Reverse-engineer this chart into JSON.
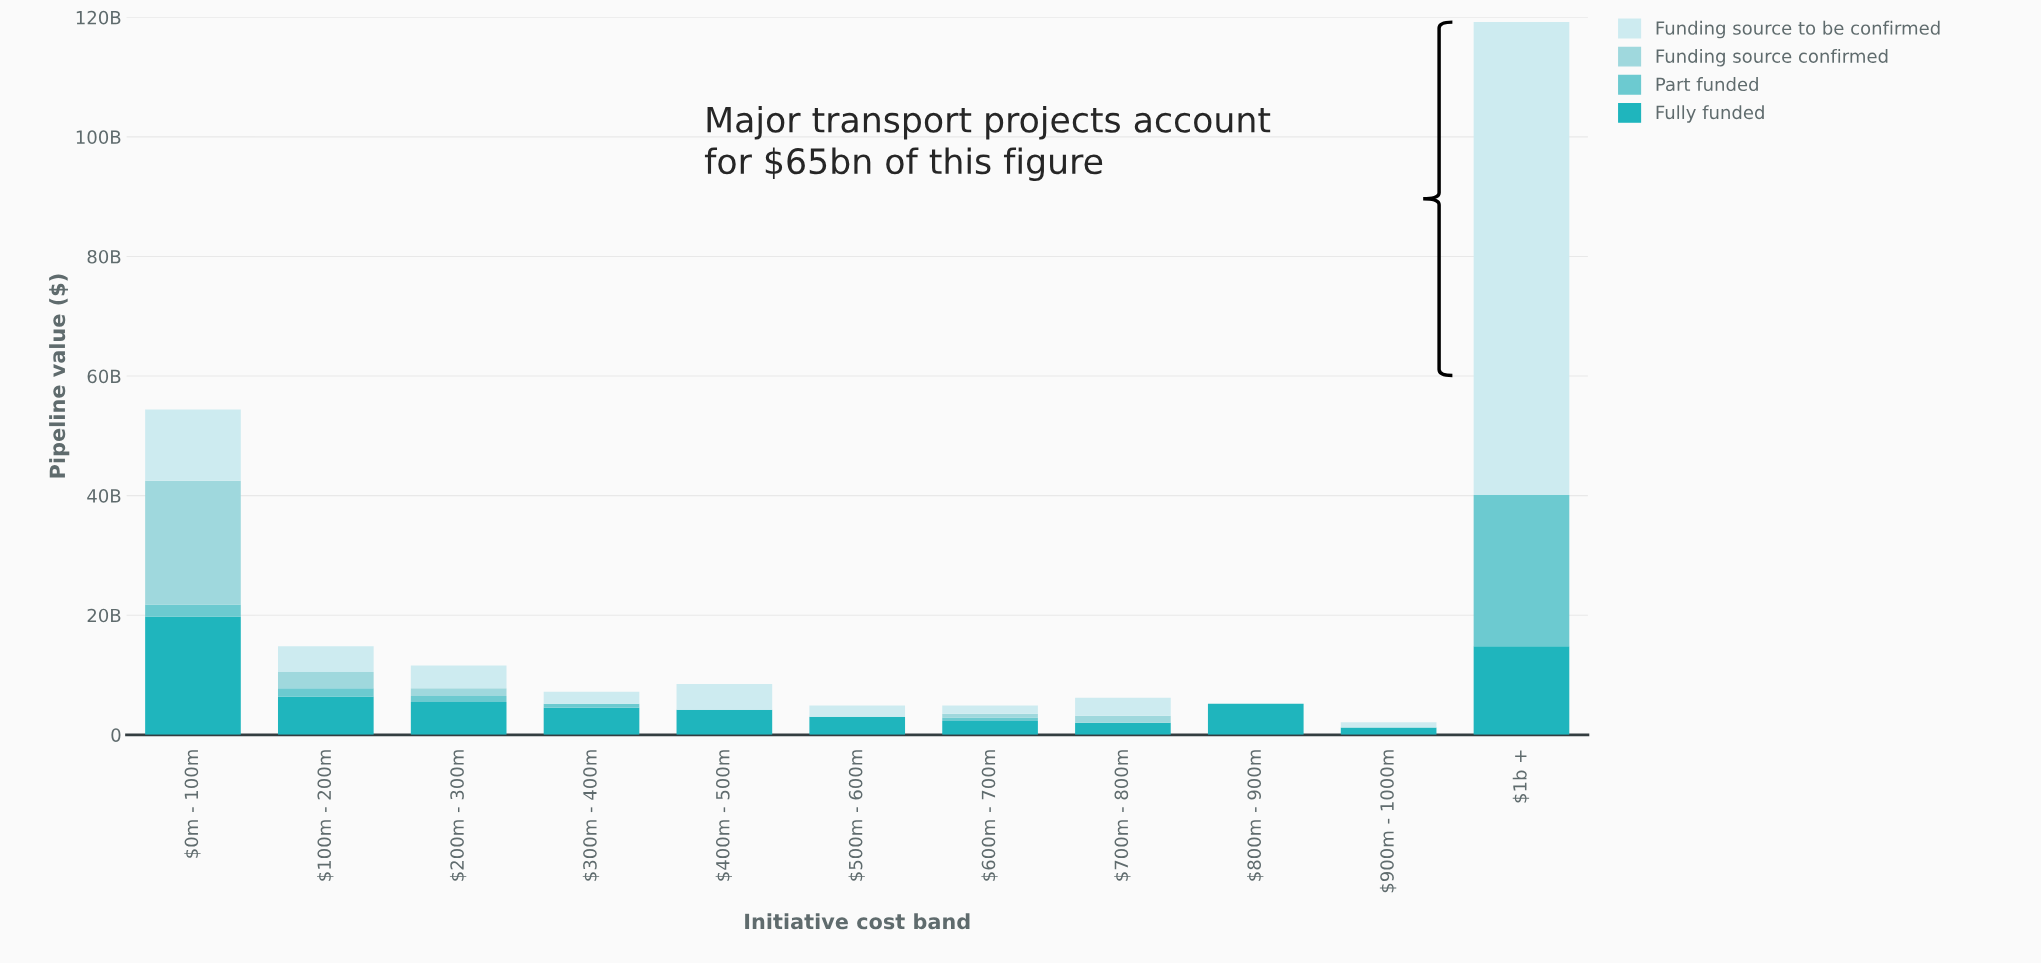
{
  "chart_data": {
    "type": "bar",
    "stacked": true,
    "categories": [
      "$0m - 100m",
      "$100m - 200m",
      "$200m - 300m",
      "$300m - 400m",
      "$400m - 500m",
      "$500m - 600m",
      "$600m - 700m",
      "$700m - 800m",
      "$800m - 900m",
      "$900m - 1000m",
      "$1b +"
    ],
    "series": [
      {
        "name": "Fully funded",
        "color": "#1fb5bd",
        "values": [
          19.8,
          6.4,
          5.5,
          4.5,
          4.2,
          3.0,
          2.3,
          2.0,
          5.2,
          1.2,
          14.8
        ]
      },
      {
        "name": "Part funded",
        "color": "#6ccad0",
        "values": [
          2.0,
          1.4,
          1.0,
          0.7,
          0,
          0,
          0.6,
          0,
          0,
          0,
          25.3
        ]
      },
      {
        "name": "Funding source confirmed",
        "color": "#9fd8dd",
        "values": [
          20.7,
          2.7,
          1.3,
          0,
          0,
          0,
          0.6,
          1.2,
          0,
          0,
          0
        ]
      },
      {
        "name": "Funding source to be confirmed",
        "color": "#cdebf0",
        "values": [
          11.9,
          4.3,
          3.8,
          2.0,
          4.3,
          1.9,
          1.4,
          3.0,
          0,
          0.9,
          79.1
        ]
      }
    ],
    "ylim": [
      0,
      120
    ],
    "yticks": [
      {
        "value": 0,
        "label": "0"
      },
      {
        "value": 20,
        "label": "20B"
      },
      {
        "value": 40,
        "label": "40B"
      },
      {
        "value": 60,
        "label": "60B"
      },
      {
        "value": 80,
        "label": "80B"
      },
      {
        "value": 100,
        "label": "100B"
      },
      {
        "value": 120,
        "label": "120B"
      }
    ],
    "xlabel": "Initiative cost band",
    "ylabel": "Pipeline value ($)",
    "grid": "y",
    "legend": "top right",
    "annotations": [
      "Major transport projects account for $65bn of this figure"
    ]
  }
}
